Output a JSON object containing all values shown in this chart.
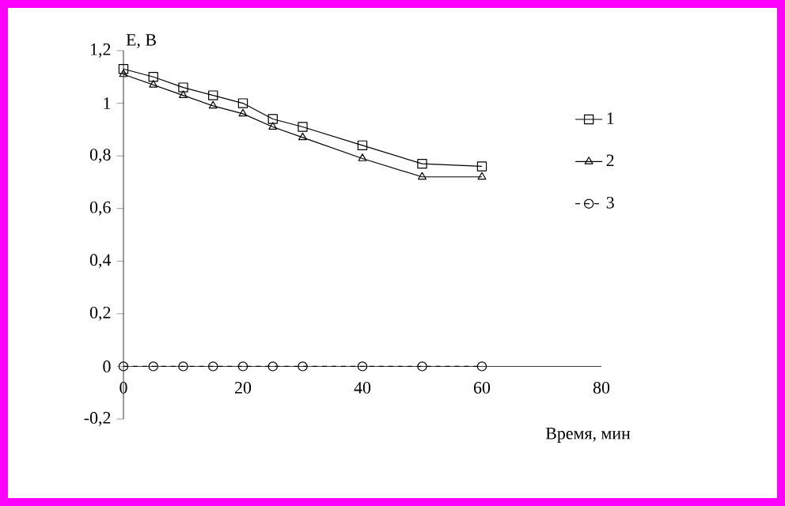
{
  "chart_data": {
    "type": "line",
    "xlabel": "Время, мин",
    "ylabel": "E, B",
    "xlim": [
      0,
      80
    ],
    "ylim": [
      -0.2,
      1.2
    ],
    "xticks": [
      0,
      20,
      40,
      60,
      80
    ],
    "yticks": [
      {
        "value": -0.2,
        "label": "-0,2"
      },
      0,
      {
        "value": 0.2,
        "label": "0,2"
      },
      {
        "value": 0.4,
        "label": "0,4"
      },
      {
        "value": 0.6,
        "label": "0,6"
      },
      {
        "value": 0.8,
        "label": "0,8"
      },
      1,
      {
        "value": 1.2,
        "label": "1,2"
      }
    ],
    "x": [
      0,
      5,
      10,
      15,
      20,
      25,
      30,
      40,
      50,
      60
    ],
    "legend": "right",
    "grid": false,
    "series": [
      {
        "name": "1",
        "color": "#000000",
        "marker": "square",
        "line_style": "solid",
        "values": [
          1.13,
          1.1,
          1.06,
          1.03,
          1.0,
          0.94,
          0.91,
          0.84,
          0.77,
          0.76
        ]
      },
      {
        "name": "2",
        "color": "#000000",
        "marker": "triangle",
        "line_style": "solid",
        "values": [
          1.11,
          1.07,
          1.03,
          0.99,
          0.96,
          0.91,
          0.87,
          0.79,
          0.72,
          0.72
        ]
      },
      {
        "name": "3",
        "color": "#000000",
        "marker": "circle",
        "line_style": "dashed",
        "values": [
          0,
          0,
          0,
          0,
          0,
          0,
          0,
          0,
          0,
          0
        ]
      }
    ]
  }
}
